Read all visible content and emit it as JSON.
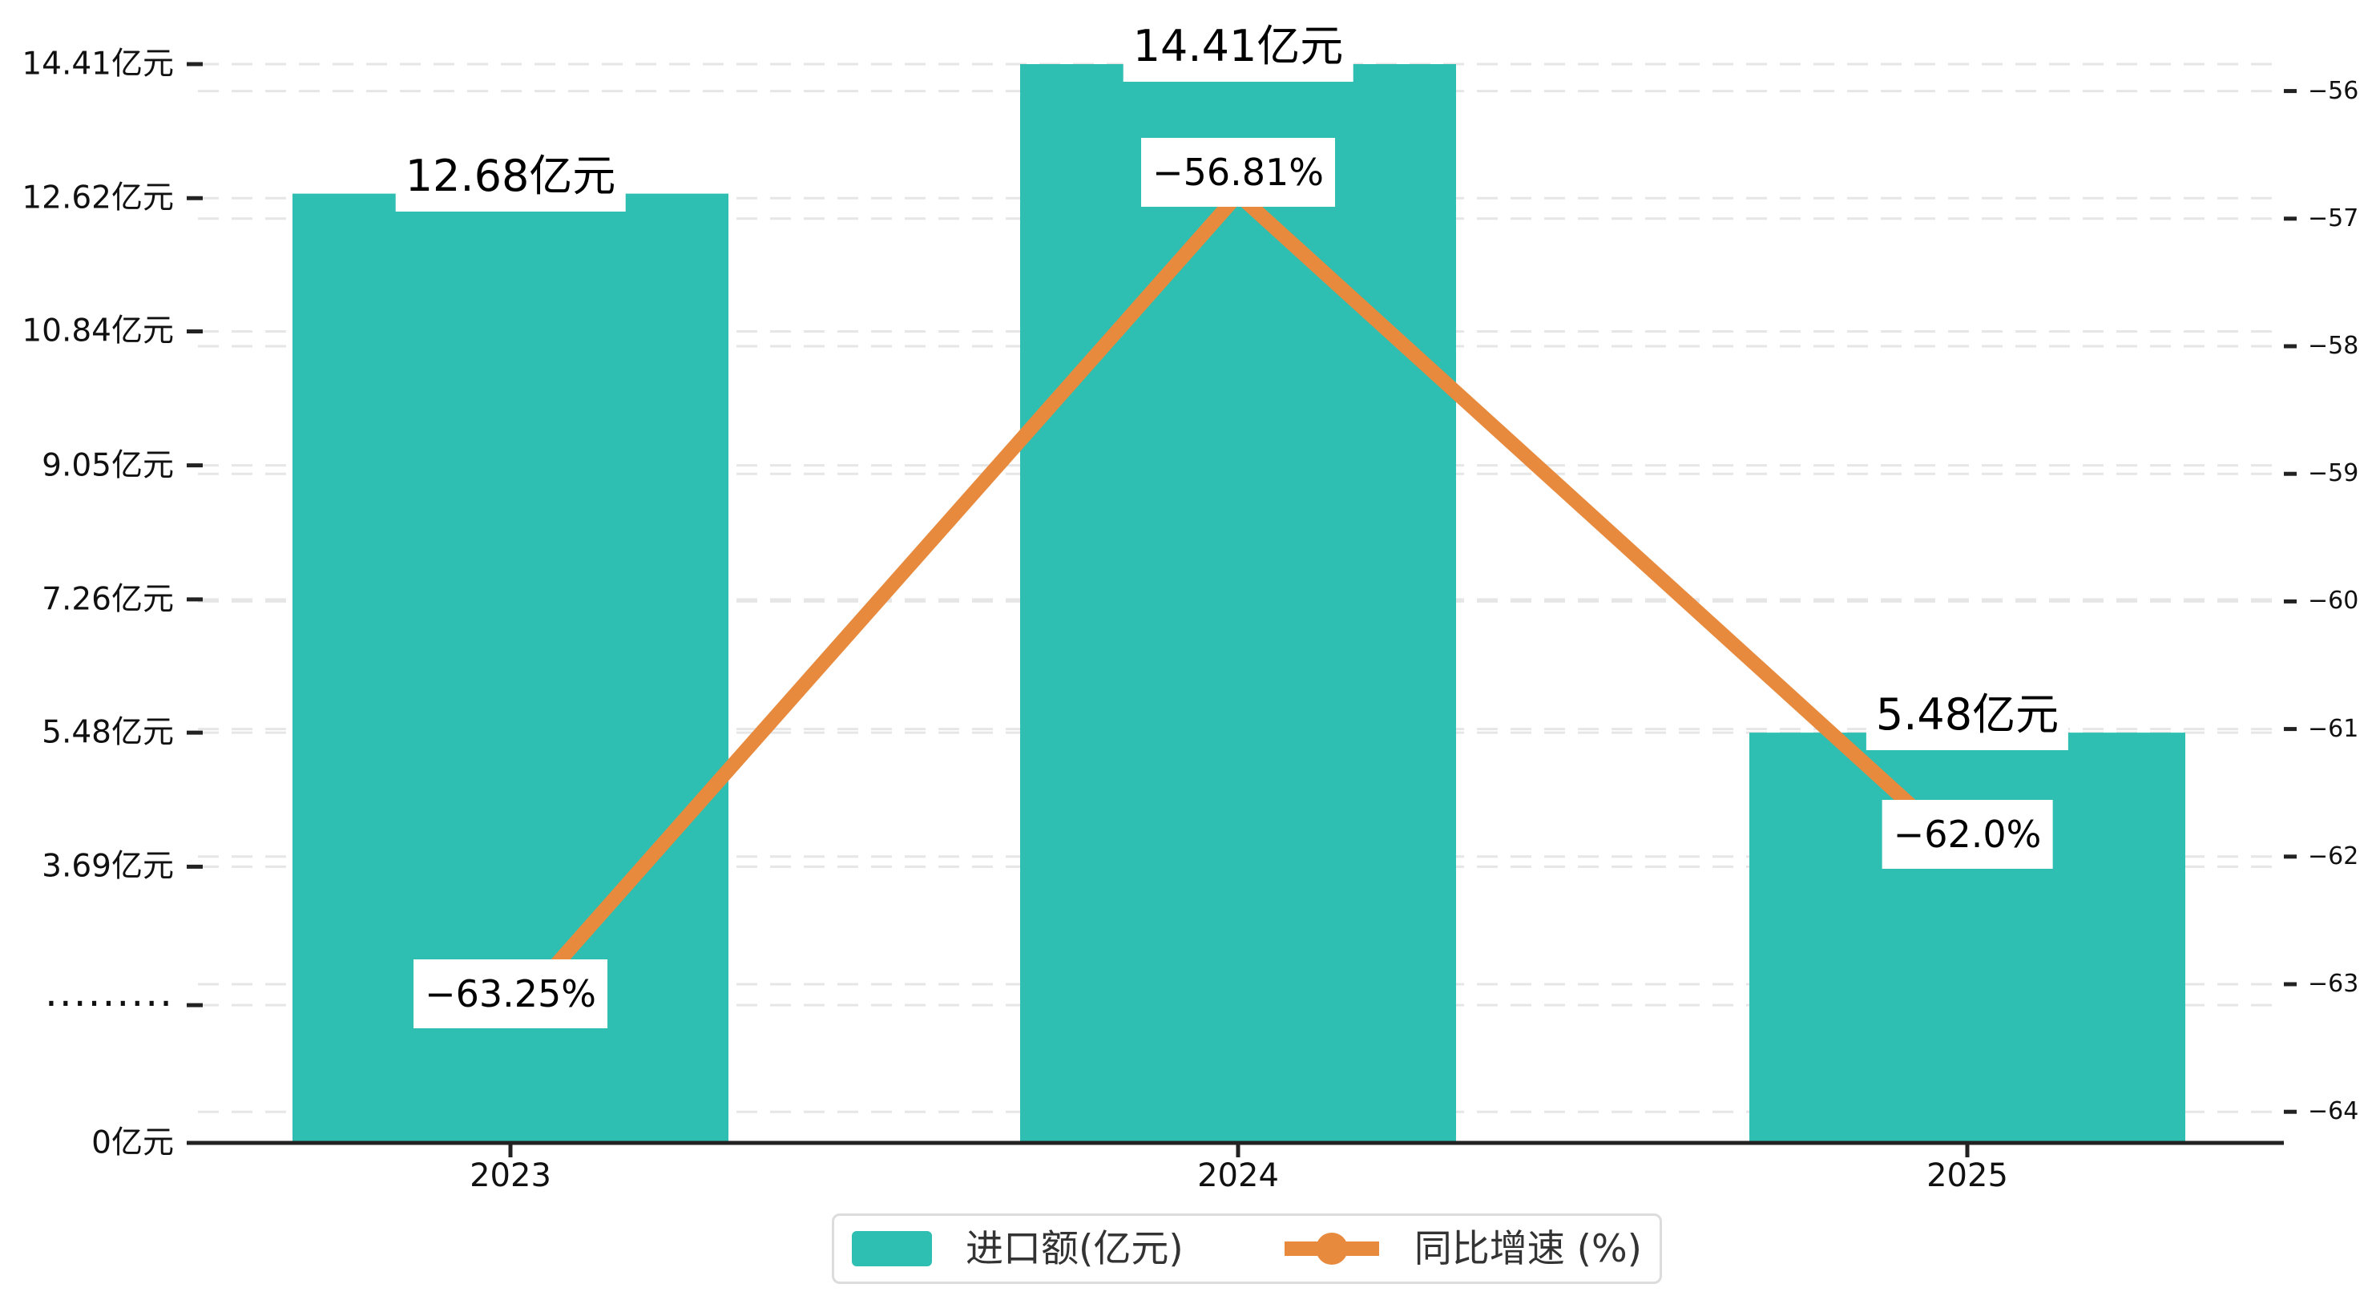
{
  "chart_data": {
    "type": "bar",
    "combo": "bar+line dual-axis",
    "categories": [
      "2023",
      "2024",
      "2025"
    ],
    "series": [
      {
        "name": "进口额(亿元)",
        "type": "bar",
        "axis": "left",
        "color": "#2EBFB2",
        "values": [
          12.68,
          14.41,
          5.48
        ],
        "point_labels": [
          "12.68亿元",
          "14.41亿元",
          "5.48亿元"
        ]
      },
      {
        "name": "同比增速 (%)",
        "type": "line",
        "axis": "right",
        "color": "#E78A3D",
        "values": [
          -63.25,
          -56.81,
          -62.0
        ],
        "point_labels": [
          "−63.25%",
          "−56.81%",
          "−62.0%"
        ]
      }
    ],
    "left_axis": {
      "range": [
        0,
        14.41
      ],
      "ticks": [
        {
          "value": 0,
          "label": "0亿元"
        },
        {
          "value": 1.84,
          "label": "........."
        },
        {
          "value": 3.69,
          "label": "3.69亿元"
        },
        {
          "value": 5.48,
          "label": "5.48亿元"
        },
        {
          "value": 7.26,
          "label": "7.26亿元"
        },
        {
          "value": 9.05,
          "label": "9.05亿元"
        },
        {
          "value": 10.84,
          "label": "10.84亿元"
        },
        {
          "value": 12.62,
          "label": "12.62亿元"
        },
        {
          "value": 14.41,
          "label": "14.41亿元"
        }
      ]
    },
    "right_axis": {
      "range": [
        -56,
        -64
      ],
      "ticks": [
        {
          "value": -56,
          "label": "−56"
        },
        {
          "value": -57,
          "label": "−57"
        },
        {
          "value": -58,
          "label": "−58"
        },
        {
          "value": -59,
          "label": "−59"
        },
        {
          "value": -60,
          "label": "−60"
        },
        {
          "value": -61,
          "label": "−61"
        },
        {
          "value": -62,
          "label": "−62"
        },
        {
          "value": -63,
          "label": "−63"
        },
        {
          "value": -64,
          "label": "−64"
        }
      ]
    },
    "legend": {
      "position": "bottom-center",
      "items": [
        {
          "label": "进口额(亿元)",
          "marker": "bar"
        },
        {
          "label": "同比增速 (%)",
          "marker": "line-dot"
        }
      ]
    },
    "style": {
      "background": "#FFFFFF",
      "grid_color": "#E6E6E6",
      "grid_dashed": true,
      "axis_color": "#222222",
      "text_color": "#111111"
    }
  }
}
